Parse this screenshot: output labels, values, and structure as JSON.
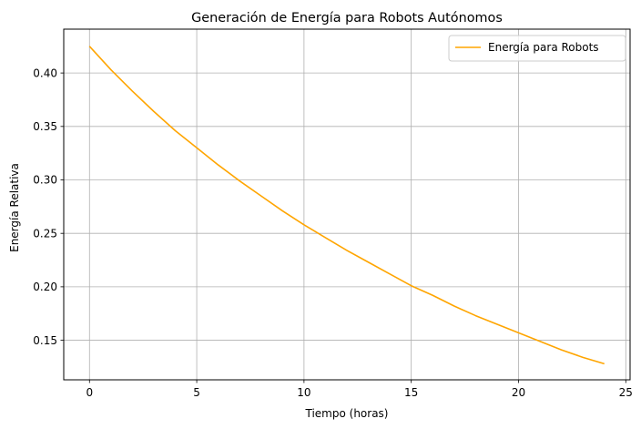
{
  "chart_data": {
    "type": "line",
    "title": "Generación de Energía para Robots Autónomos",
    "xlabel": "Tiempo (horas)",
    "ylabel": "Energía Relativa",
    "xlim": [
      -1.2,
      25.2
    ],
    "ylim": [
      0.113,
      0.441
    ],
    "xticks": [
      0,
      5,
      10,
      15,
      20,
      25
    ],
    "xtick_labels": [
      "0",
      "5",
      "10",
      "15",
      "20",
      "25"
    ],
    "yticks": [
      0.15,
      0.2,
      0.25,
      0.3,
      0.35,
      0.4
    ],
    "ytick_labels": [
      "0.15",
      "0.20",
      "0.25",
      "0.30",
      "0.35",
      "0.40"
    ],
    "grid": true,
    "legend_position": "top-right",
    "series": [
      {
        "name": "Energía para Robots",
        "color": "#FFA500",
        "x": [
          0,
          1,
          2,
          3,
          4,
          5,
          6,
          7,
          8,
          9,
          10,
          11,
          12,
          13,
          14,
          15,
          16,
          17,
          18,
          19,
          20,
          21,
          22,
          23,
          24
        ],
        "y": [
          0.425,
          0.403,
          0.383,
          0.364,
          0.346,
          0.33,
          0.314,
          0.299,
          0.285,
          0.271,
          0.258,
          0.246,
          0.234,
          0.223,
          0.212,
          0.201,
          0.192,
          0.182,
          0.173,
          0.165,
          0.157,
          0.149,
          0.141,
          0.134,
          0.128
        ]
      }
    ]
  }
}
